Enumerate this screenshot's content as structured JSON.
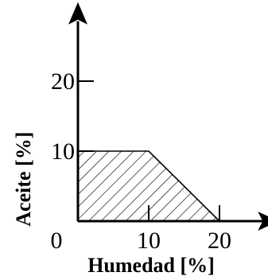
{
  "chart_data": {
    "type": "area",
    "xlabel": "Humedad [%]",
    "ylabel": "Aceite [%]",
    "origin_label": "0",
    "x_ticks": [
      10,
      20
    ],
    "y_ticks": [
      10,
      20
    ],
    "xlim": [
      0,
      27
    ],
    "ylim": [
      0,
      29
    ],
    "grid": false,
    "region": {
      "fill": "hatched",
      "x": [
        0,
        10,
        20,
        0
      ],
      "y": [
        10,
        10,
        0,
        0
      ]
    },
    "colors": {
      "axis": "#000000",
      "hatch": "#000000",
      "background": "#ffffff"
    }
  }
}
